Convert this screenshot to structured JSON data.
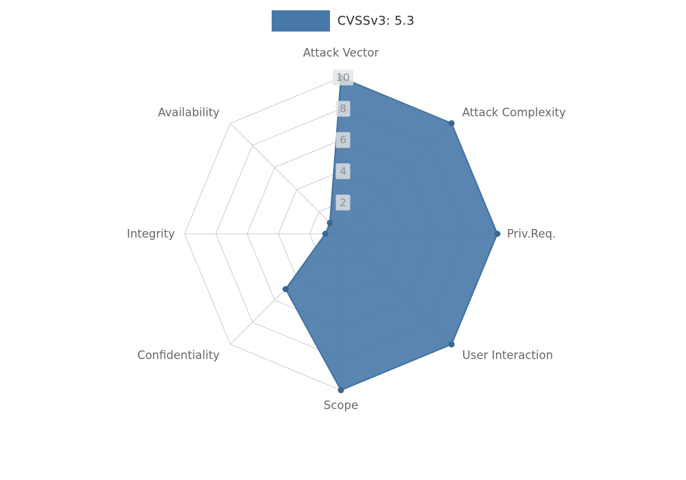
{
  "legend": {
    "label": "CVSSv3: 5.3"
  },
  "chart_data": {
    "type": "radar",
    "title": "CVSSv3: 5.3",
    "categories": [
      "Attack Vector",
      "Attack Complexity",
      "Priv.Req.",
      "User Interaction",
      "Scope",
      "Confidentiality",
      "Integrity",
      "Availability"
    ],
    "series": [
      {
        "name": "CVSSv3: 5.3",
        "values": [
          10,
          10,
          10,
          10,
          10,
          5,
          1,
          1
        ]
      }
    ],
    "ticks": [
      2,
      4,
      6,
      8,
      10
    ],
    "rmax": 10,
    "grid": "polygon-web",
    "legend_position": "top-center",
    "colors": {
      "fill": "#4878a8",
      "fill_opacity": "0.9",
      "stroke": "#40719f",
      "marker": "#3a6894",
      "grid": "#cccccc",
      "axis_label": "#666666",
      "tick_label": "#8f8f8f",
      "tick_bg": "#e4e4e4"
    }
  }
}
